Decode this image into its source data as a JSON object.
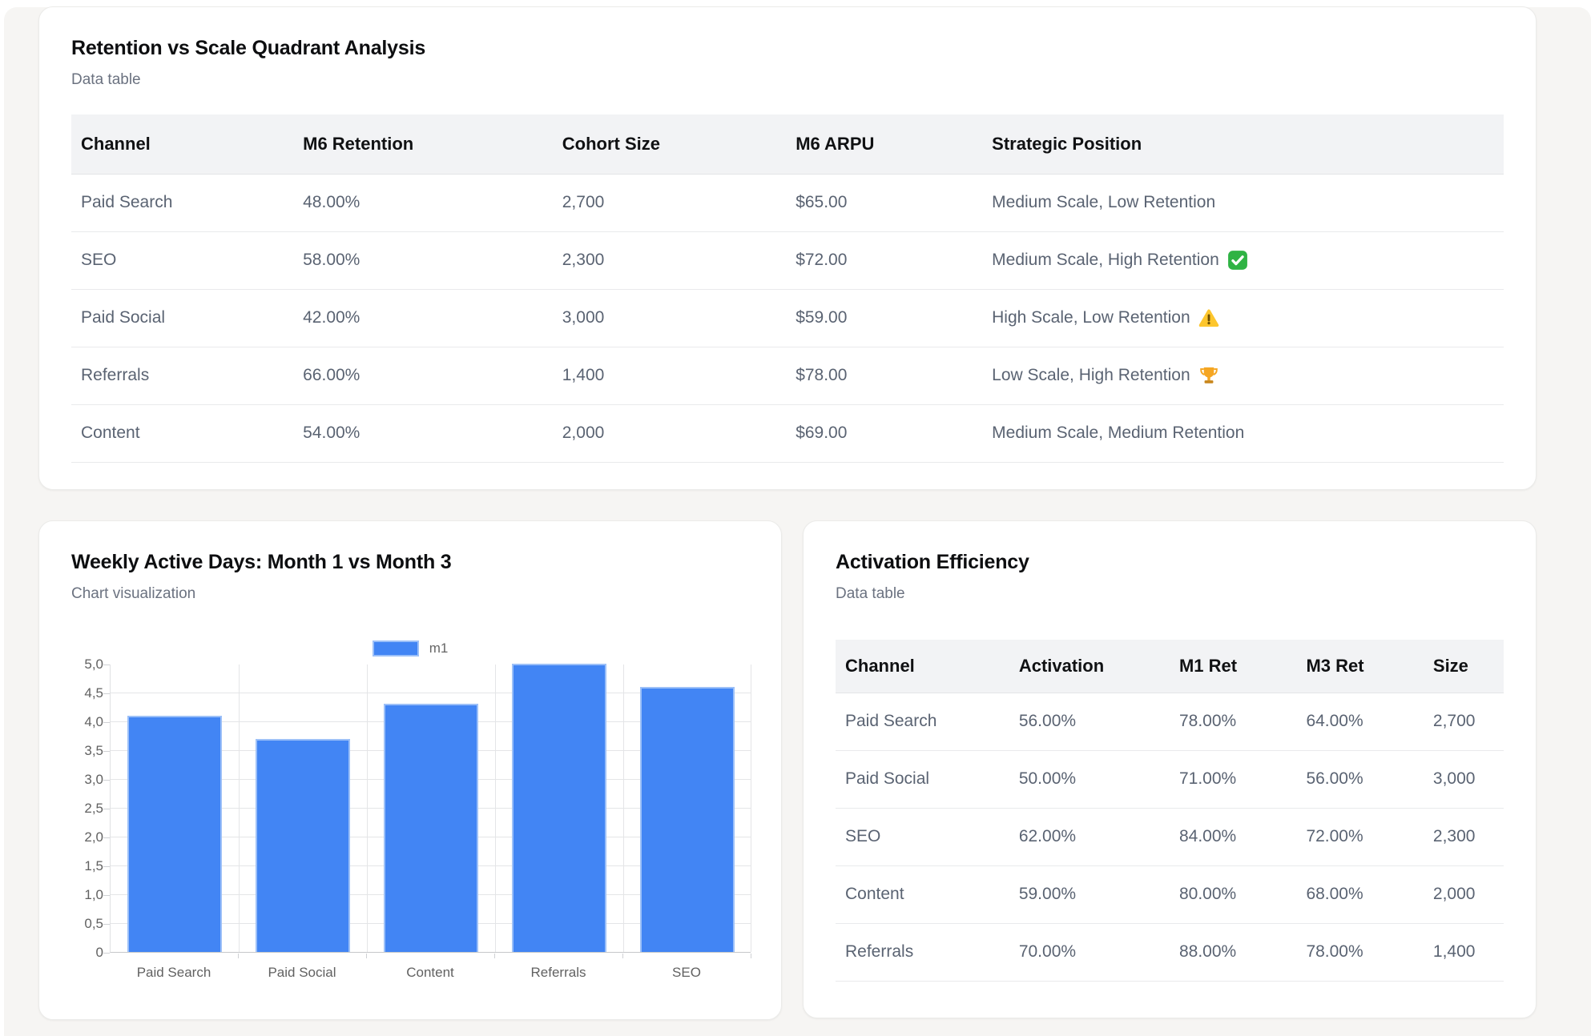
{
  "quadrant_card": {
    "title": "Retention vs Scale Quadrant Analysis",
    "subtitle": "Data table",
    "columns": [
      "Channel",
      "M6 Retention",
      "Cohort Size",
      "M6 ARPU",
      "Strategic Position"
    ],
    "rows": [
      {
        "cells": [
          "Paid Search",
          "48.00%",
          "2,700",
          "$65.00",
          "Medium Scale, Low Retention"
        ],
        "icon": null
      },
      {
        "cells": [
          "SEO",
          "58.00%",
          "2,300",
          "$72.00",
          "Medium Scale, High Retention"
        ],
        "icon": "check-badge"
      },
      {
        "cells": [
          "Paid Social",
          "42.00%",
          "3,000",
          "$59.00",
          "High Scale, Low Retention"
        ],
        "icon": "warning-triangle"
      },
      {
        "cells": [
          "Referrals",
          "66.00%",
          "1,400",
          "$78.00",
          "Low Scale, High Retention"
        ],
        "icon": "trophy"
      },
      {
        "cells": [
          "Content",
          "54.00%",
          "2,000",
          "$69.00",
          "Medium Scale, Medium Retention"
        ],
        "icon": null
      }
    ]
  },
  "chart_card": {
    "title": "Weekly Active Days: Month 1 vs Month 3",
    "subtitle": "Chart visualization",
    "legend_label": "m1"
  },
  "chart_data": {
    "type": "bar",
    "title": "Weekly Active Days: Month 1 vs Month 3",
    "categories": [
      "Paid Search",
      "Paid Social",
      "Content",
      "Referrals",
      "SEO"
    ],
    "series": [
      {
        "name": "m1",
        "values": [
          4.1,
          3.7,
          4.3,
          5.0,
          4.6
        ]
      }
    ],
    "xlabel": "",
    "ylabel": "",
    "ylim": [
      0,
      5
    ],
    "ytick_step": 0.5,
    "ytick_labels": [
      "0",
      "0,5",
      "1,0",
      "1,5",
      "2,0",
      "2,5",
      "3,0",
      "3,5",
      "4,0",
      "4,5",
      "5,0"
    ],
    "grid": true,
    "legend_position": "top",
    "bar_color": "#4285f4",
    "bar_border_color": "#9cc0f8"
  },
  "activation_card": {
    "title": "Activation Efficiency",
    "subtitle": "Data table",
    "columns": [
      "Channel",
      "Activation",
      "M1 Ret",
      "M3 Ret",
      "Size"
    ],
    "rows": [
      {
        "cells": [
          "Paid Search",
          "56.00%",
          "78.00%",
          "64.00%",
          "2,700"
        ],
        "icon": null
      },
      {
        "cells": [
          "Paid Social",
          "50.00%",
          "71.00%",
          "56.00%",
          "3,000"
        ],
        "icon": null
      },
      {
        "cells": [
          "SEO",
          "62.00%",
          "84.00%",
          "72.00%",
          "2,300"
        ],
        "icon": null
      },
      {
        "cells": [
          "Content",
          "59.00%",
          "80.00%",
          "68.00%",
          "2,000"
        ],
        "icon": null
      },
      {
        "cells": [
          "Referrals",
          "70.00%",
          "88.00%",
          "78.00%",
          "1,400"
        ],
        "icon": null
      }
    ]
  },
  "status_icon_colors": {
    "check_green": "#2fb344",
    "warning_yellow": "#fdc62d",
    "warning_glyph": "#6b4d00",
    "trophy_gold": "#f5a623",
    "trophy_base": "#c8861b"
  }
}
